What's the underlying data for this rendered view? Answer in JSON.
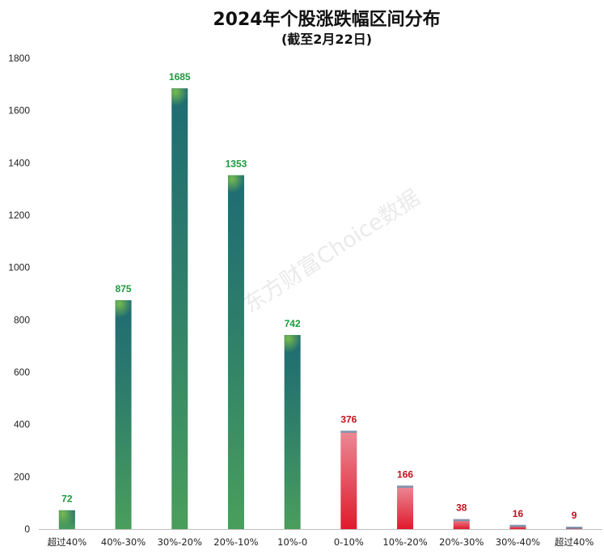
{
  "chart_data": {
    "type": "bar",
    "title": "2024年个股涨跌幅区间分布",
    "subtitle": "(截至2月22日)",
    "watermark": "东方财富Choice数据",
    "categories": [
      "超过40%",
      "40%-30%",
      "30%-20%",
      "20%-10%",
      "10%-0",
      "0-10%",
      "10%-20%",
      "20%-30%",
      "30%-40%",
      "超过40%"
    ],
    "values": [
      72,
      875,
      1685,
      1353,
      742,
      376,
      166,
      38,
      16,
      9
    ],
    "direction": [
      "down",
      "down",
      "down",
      "down",
      "down",
      "up",
      "up",
      "up",
      "up",
      "up"
    ],
    "ylim": [
      0,
      1800
    ],
    "yticks": [
      0,
      200,
      400,
      600,
      800,
      1000,
      1200,
      1400,
      1600,
      1800
    ],
    "xlabel": "",
    "ylabel": "",
    "grid": false,
    "legend": "none",
    "colors": {
      "down_label": "#1a9a3c",
      "down_top": "#1e6b73",
      "down_bottom": "#4a9e5c",
      "down_cap": "#6bb04a",
      "up_label": "#c0121d",
      "up_top": "#eb8a96",
      "up_bottom": "#e01a2c",
      "up_cap": "#7d95ad"
    }
  }
}
